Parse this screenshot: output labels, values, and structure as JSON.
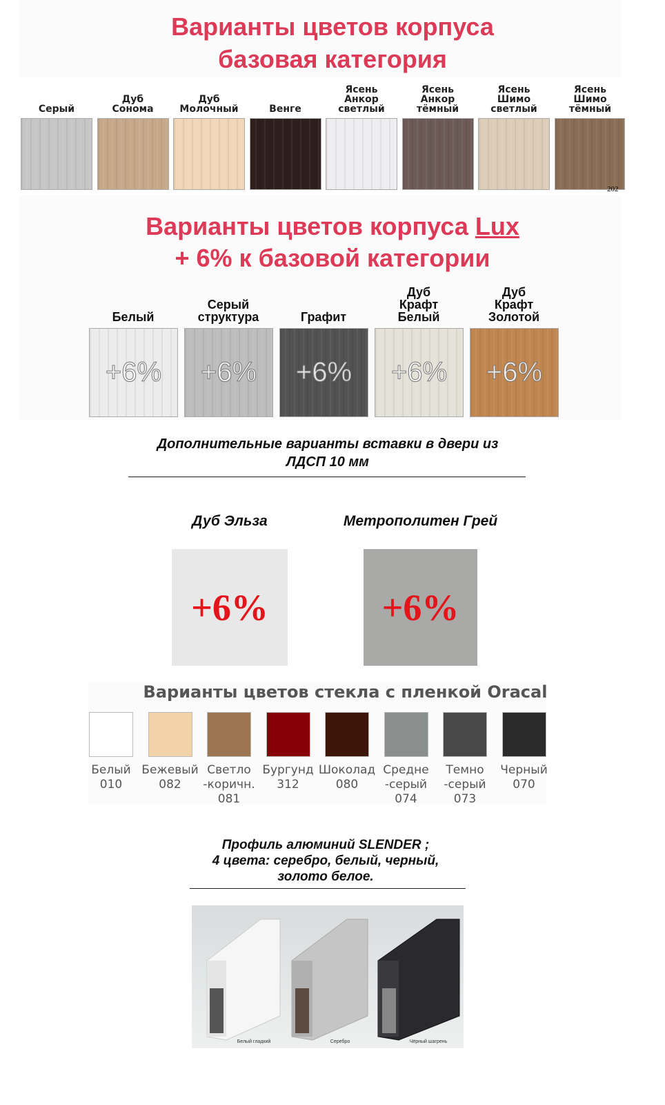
{
  "base": {
    "title1": "Варианты цветов корпуса",
    "title2": "базовая категория",
    "watermark": "202",
    "items": [
      {
        "label": "Серый",
        "color": "#c6c6c6"
      },
      {
        "label": "Дуб\nСонома",
        "color": "#c7a98a"
      },
      {
        "label": "Дуб\nМолочный",
        "color": "#f1d6b8"
      },
      {
        "label": "Венге",
        "color": "#2f1f1c"
      },
      {
        "label": "Ясень\nАнкор\nсветлый",
        "color": "#eeeef0"
      },
      {
        "label": "Ясень\nАнкор\nтёмный",
        "color": "#6c5a57"
      },
      {
        "label": "Ясень\nШимо\nсветлый",
        "color": "#dccdb7"
      },
      {
        "label": "Ясень\nШимо\nтёмный",
        "color": "#8a6d54"
      }
    ]
  },
  "lux": {
    "title1": "Варианты цветов корпуса ",
    "title1_lux": "Lux",
    "title2": "+ 6% к базовой категории",
    "items": [
      {
        "label": "Белый",
        "color": "#ececec",
        "badge": "+6%"
      },
      {
        "label": "Серый\nструктура",
        "color": "#bdbdbd",
        "badge": "+6%"
      },
      {
        "label": "Графит",
        "color": "#525252",
        "badge": "+6%"
      },
      {
        "label": "Дуб\nКрафт\nБелый",
        "color": "#e4e1d8",
        "badge": "+6%"
      },
      {
        "label": "Дуб\nКрафт\nЗолотой",
        "color": "#c0864f",
        "badge": "+6%"
      }
    ]
  },
  "inserts": {
    "heading1": "Дополнительные варианты вставки в двери из",
    "heading2": "ЛДСП 10 мм",
    "items": [
      {
        "label": "Дуб Эльза",
        "color": "#e8e8e8",
        "badge": "+6%"
      },
      {
        "label": "Метрополитен Грей",
        "color": "#a9a9a7",
        "badge": "+6%"
      }
    ]
  },
  "oracal": {
    "title": "Варианты цветов стекла с пленкой Oracal",
    "items": [
      {
        "label": "Белый\n010",
        "color": "#ffffff"
      },
      {
        "label": "Бежевый\n082",
        "color": "#f2d3a9"
      },
      {
        "label": "Светло\n-коричн.\n081",
        "color": "#9b7650"
      },
      {
        "label": "Бургунд\n312",
        "color": "#870006"
      },
      {
        "label": "Шоколад\n080",
        "color": "#3e1509"
      },
      {
        "label": "Средне\n-серый\n074",
        "color": "#8a8e8c"
      },
      {
        "label": "Темно\n-серый\n073",
        "color": "#484848"
      },
      {
        "label": "Черный\n070",
        "color": "#2b2b2b"
      }
    ]
  },
  "profile": {
    "line1": "Профиль алюминий SLENDER ;",
    "line2": "4 цвета: серебро, белый, черный,",
    "line3": "золото белое.",
    "captions": [
      "Белый гладкий",
      "Серебро",
      "Чёрный шагрень"
    ]
  }
}
